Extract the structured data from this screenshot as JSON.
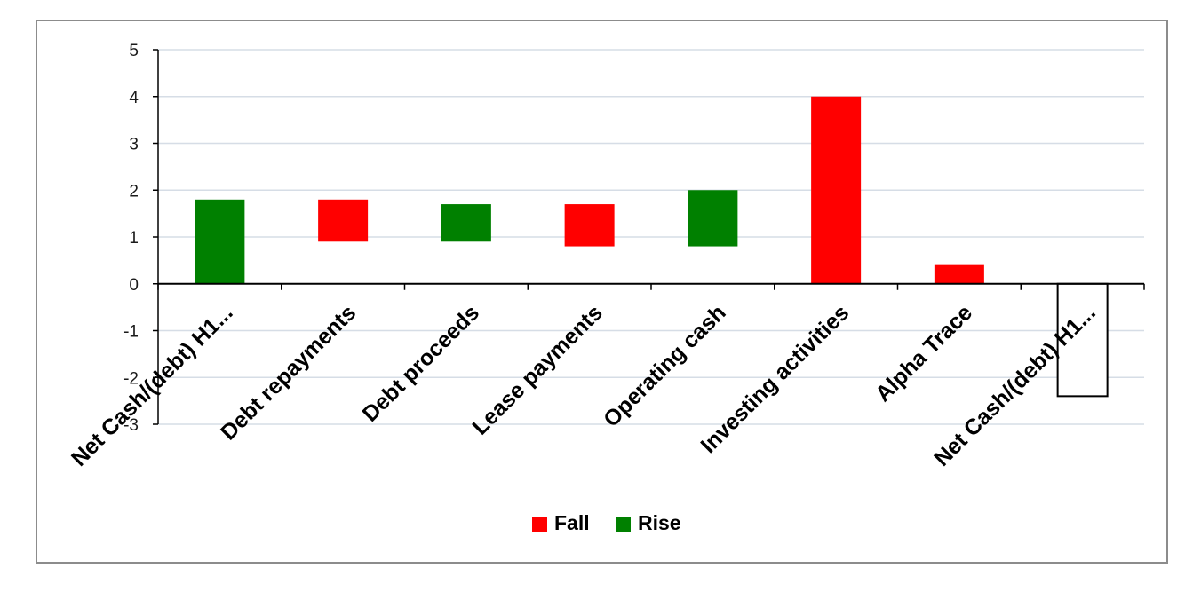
{
  "chart_data": {
    "type": "bar",
    "subtype": "waterfall",
    "title": "",
    "xlabel": "",
    "ylabel": "",
    "ylim": [
      -3,
      5
    ],
    "yticks": [
      5,
      4,
      3,
      2,
      1,
      0,
      -1,
      -2,
      -3
    ],
    "grid": true,
    "legend_position": "bottom",
    "categories": [
      "Net Cash/(debt) H1...",
      "Debt repayments",
      "Debt proceeds",
      "Lease payments",
      "Operating cash",
      "Investing activities",
      "Alpha Trace",
      "Net Cash/(debt) H1..."
    ],
    "series": [
      {
        "name": "Fall",
        "color": "#ff0000",
        "bars": [
          null,
          {
            "from": 0.9,
            "to": 1.8
          },
          null,
          {
            "from": 0.8,
            "to": 1.7
          },
          null,
          {
            "from": 0,
            "to": 4.0
          },
          {
            "from": 0,
            "to": 0.4
          },
          null
        ]
      },
      {
        "name": "Rise",
        "color": "#008000",
        "bars": [
          {
            "from": 0,
            "to": 1.8
          },
          null,
          {
            "from": 0.9,
            "to": 1.7
          },
          null,
          {
            "from": 0.8,
            "to": 2.0
          },
          null,
          null,
          null
        ]
      },
      {
        "color": "#ffffff",
        "outline": "#000000",
        "bars": [
          null,
          null,
          null,
          null,
          null,
          null,
          null,
          {
            "from": -2.4,
            "to": 0
          }
        ]
      }
    ],
    "legend": [
      {
        "label": "Fall",
        "color": "#ff0000"
      },
      {
        "label": "Rise",
        "color": "#008000"
      }
    ]
  }
}
